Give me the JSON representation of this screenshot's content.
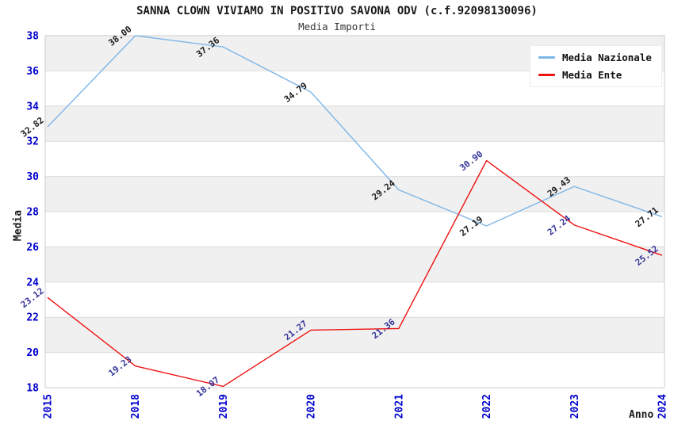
{
  "chart_data": {
    "type": "line",
    "title": "SANNA CLOWN VIVIAMO IN POSITIVO SAVONA ODV (c.f.92098130096)",
    "subtitle": "Media Importi",
    "xlabel": "Anno",
    "ylabel": "Media",
    "categories": [
      "2015",
      "2018",
      "2019",
      "2020",
      "2021",
      "2022",
      "2023",
      "2024"
    ],
    "series": [
      {
        "name": "Media Nazionale",
        "values": [
          32.82,
          38.0,
          37.36,
          34.79,
          29.24,
          27.19,
          29.43,
          27.71
        ],
        "labels": [
          "32.82",
          "38.00",
          "37.36",
          "34.79",
          "29.24",
          "27.19",
          "29.43",
          "27.71"
        ],
        "color": "#7EB6E8",
        "label_color": "#1a1a1a"
      },
      {
        "name": "Media Ente",
        "values": [
          23.12,
          19.23,
          18.07,
          21.27,
          21.36,
          30.9,
          27.24,
          25.52
        ],
        "labels": [
          "23.12",
          "19.23",
          "18.07",
          "21.27",
          "21.36",
          "30.90",
          "27.24",
          "25.52"
        ],
        "color": "#EE1111",
        "label_color": "#333399"
      }
    ],
    "ylim": [
      18,
      38
    ],
    "ytick_step": 2,
    "yticks": [
      "18",
      "20",
      "22",
      "24",
      "26",
      "28",
      "30",
      "32",
      "34",
      "36",
      "38"
    ],
    "tick_label_color": "#0000CC",
    "band_color": "#F0F0F0",
    "band_edge_color": "#DCDCDC",
    "plot_border_color": "#CCCCCC",
    "grid": "horizontal-bands",
    "legend_position": "top-right"
  }
}
